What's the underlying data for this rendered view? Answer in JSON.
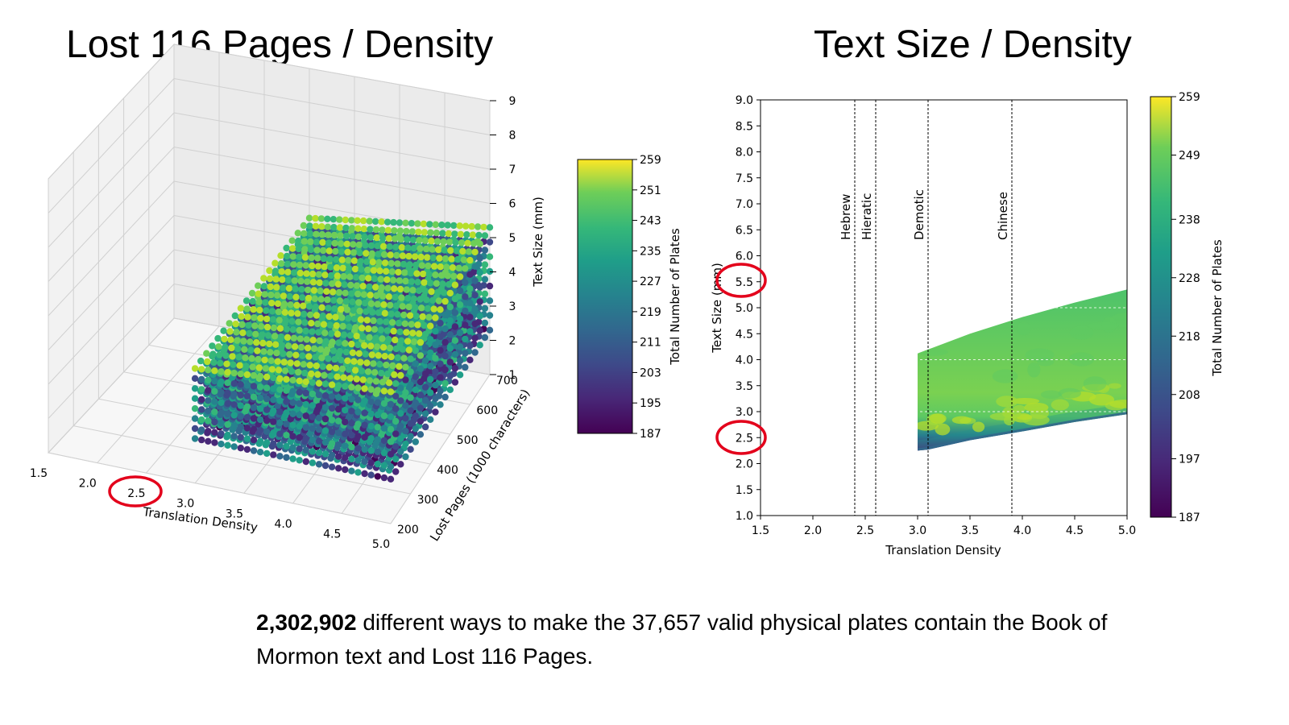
{
  "slide": {
    "left_title": "Lost 116 Pages / Density",
    "right_title": "Text Size / Density",
    "caption_bold": "2,302,902",
    "caption_rest": " different ways to make the 37,657 valid physical plates contain the Book of Mormon text and Lost 116 Pages."
  },
  "chart_data": [
    {
      "type": "scatter",
      "projection": "3d",
      "title": "Lost 116 Pages / Density",
      "xlabel": "Translation Density",
      "ylabel": "Lost Pages (1000 characters)",
      "zlabel": "Text Size (mm)",
      "xlim": [
        1.5,
        5.0
      ],
      "ylim": [
        200,
        700
      ],
      "zlim": [
        1,
        9
      ],
      "x_ticks": [
        "1.5",
        "2.0",
        "2.5",
        "3.0",
        "3.5",
        "4.0",
        "4.5",
        "5.0"
      ],
      "y_ticks": [
        "200",
        "300",
        "400",
        "500",
        "600",
        "700"
      ],
      "z_ticks": [
        "1",
        "2",
        "3",
        "4",
        "5",
        "6",
        "7",
        "8",
        "9"
      ],
      "point_region": {
        "x": [
          3.0,
          5.0
        ],
        "y": [
          200,
          700
        ],
        "z": [
          2.3,
          5.3
        ]
      },
      "colorbar": {
        "label": "Total Number of Plates",
        "min": 187,
        "max": 259,
        "ticks": [
          "259",
          "251",
          "243",
          "235",
          "227",
          "219",
          "211",
          "203",
          "195",
          "187"
        ]
      },
      "highlighted_tick": "2.5",
      "grid": true
    },
    {
      "type": "heatmap",
      "title": "Text Size / Density",
      "xlabel": "Translation Density",
      "ylabel": "Text Size (mm)",
      "xlim": [
        1.5,
        5.0
      ],
      "ylim": [
        1.0,
        9.0
      ],
      "x_ticks": [
        "1.5",
        "2.0",
        "2.5",
        "3.0",
        "3.5",
        "4.0",
        "4.5",
        "5.0"
      ],
      "y_ticks": [
        "9.0",
        "8.5",
        "8.0",
        "7.5",
        "7.0",
        "6.5",
        "6.0",
        "5.5",
        "5.0",
        "4.5",
        "4.0",
        "3.5",
        "3.0",
        "2.5",
        "2.0",
        "1.5",
        "1.0"
      ],
      "region": {
        "x_start": 3.0,
        "x_end": 5.0,
        "lower": [
          [
            3.0,
            2.25
          ],
          [
            3.1,
            2.27
          ],
          [
            3.5,
            2.45
          ],
          [
            4.0,
            2.62
          ],
          [
            4.5,
            2.8
          ],
          [
            5.0,
            2.95
          ]
        ],
        "upper": [
          [
            3.0,
            4.12
          ],
          [
            3.5,
            4.5
          ],
          [
            4.0,
            4.82
          ],
          [
            4.5,
            5.1
          ],
          [
            5.0,
            5.35
          ]
        ]
      },
      "reference_lines": [
        {
          "label": "Hebrew",
          "x": 2.4
        },
        {
          "label": "Hieratic",
          "x": 2.6
        },
        {
          "label": "Demotic",
          "x": 3.1
        },
        {
          "label": "Chinese",
          "x": 3.9
        }
      ],
      "colorbar": {
        "label": "Total Number of Plates",
        "min": 187,
        "max": 259,
        "ticks": [
          "259",
          "249",
          "238",
          "228",
          "218",
          "208",
          "197",
          "187"
        ]
      },
      "highlighted_ticks": [
        "5.5",
        "2.5"
      ]
    }
  ]
}
